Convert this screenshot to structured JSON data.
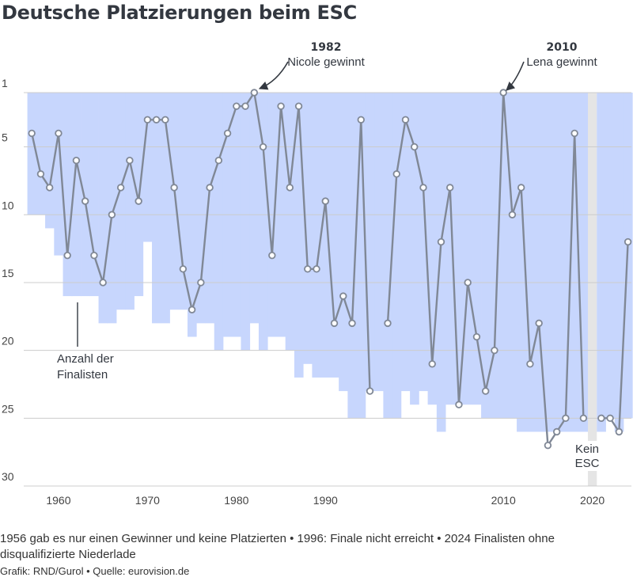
{
  "title": "Deutsche Platzierungen beim ESC",
  "chart_data": {
    "type": "line",
    "title": "Deutsche Platzierungen beim ESC",
    "x_ticks": [
      1960,
      1970,
      1980,
      1990,
      2010,
      2020
    ],
    "y_ticks": [
      1,
      5,
      10,
      15,
      20,
      25,
      30
    ],
    "xlim": [
      1955.6,
      2025
    ],
    "ylim": [
      1,
      30
    ],
    "y_inverted": true,
    "grid": "horizontal",
    "series": [
      {
        "role": "placement",
        "x": [
          1957,
          1958,
          1959,
          1960,
          1961,
          1962,
          1963,
          1964,
          1965,
          1966,
          1967,
          1968,
          1969,
          1970,
          1971,
          1972,
          1973,
          1974,
          1975,
          1976,
          1977,
          1978,
          1979,
          1980,
          1981,
          1982,
          1983,
          1984,
          1985,
          1986,
          1987,
          1988,
          1989,
          1990,
          1991,
          1992,
          1993,
          1994,
          1995,
          1996,
          1997,
          1998,
          1999,
          2000,
          2001,
          2002,
          2003,
          2004,
          2005,
          2006,
          2007,
          2008,
          2009,
          2010,
          2011,
          2012,
          2013,
          2014,
          2015,
          2016,
          2017,
          2018,
          2019,
          2020,
          2021,
          2022,
          2023,
          2024
        ],
        "y": [
          4,
          7,
          8,
          4,
          13,
          6,
          9,
          13,
          15,
          10,
          8,
          6,
          9,
          3,
          3,
          3,
          8,
          14,
          17,
          15,
          8,
          6,
          4,
          2,
          2,
          1,
          5,
          13,
          2,
          8,
          2,
          14,
          14,
          9,
          18,
          16,
          18,
          3,
          23,
          null,
          18,
          7,
          3,
          5,
          8,
          21,
          12,
          8,
          24,
          15,
          19,
          23,
          20,
          1,
          10,
          8,
          21,
          18,
          27,
          26,
          25,
          4,
          25,
          null,
          25,
          25,
          26,
          12
        ]
      },
      {
        "role": "finalists",
        "label": "Anzahl der Finalisten",
        "x": [
          1957,
          1958,
          1959,
          1960,
          1961,
          1962,
          1963,
          1964,
          1965,
          1966,
          1967,
          1968,
          1969,
          1970,
          1971,
          1972,
          1973,
          1974,
          1975,
          1976,
          1977,
          1978,
          1979,
          1980,
          1981,
          1982,
          1983,
          1984,
          1985,
          1986,
          1987,
          1988,
          1989,
          1990,
          1991,
          1992,
          1993,
          1994,
          1995,
          1996,
          1997,
          1998,
          1999,
          2000,
          2001,
          2002,
          2003,
          2004,
          2005,
          2006,
          2007,
          2008,
          2009,
          2010,
          2011,
          2012,
          2013,
          2014,
          2015,
          2016,
          2017,
          2018,
          2019,
          2020,
          2021,
          2022,
          2023,
          2024
        ],
        "y": [
          10,
          10,
          11,
          13,
          16,
          16,
          16,
          16,
          18,
          18,
          17,
          17,
          16,
          12,
          18,
          18,
          17,
          17,
          19,
          18,
          18,
          20,
          19,
          19,
          20,
          18,
          20,
          19,
          19,
          20,
          22,
          21,
          22,
          22,
          22,
          23,
          25,
          25,
          23,
          23,
          25,
          25,
          23,
          24,
          23,
          24,
          26,
          24,
          24,
          24,
          24,
          25,
          25,
          25,
          25,
          26,
          26,
          26,
          26,
          26,
          26,
          26,
          26,
          null,
          26,
          25,
          26,
          25
        ]
      }
    ],
    "annotations": [
      {
        "year": "1982",
        "text": "Nicole gewinnt"
      },
      {
        "year": "2010",
        "text": "Lena gewinnt"
      },
      {
        "text_lines": [
          "Anzahl der",
          "Finalisten"
        ]
      },
      {
        "text_lines": [
          "Kein",
          "ESC"
        ]
      }
    ],
    "colors": {
      "area": "#c7d6fd",
      "line": "#808896",
      "marker_fill": "#ffffff",
      "no_contest": "#e5e5e5",
      "grid": "#cccccc"
    }
  },
  "footnote": "1956 gab es nur einen Gewinner und keine Platzierten • 1996: Finale nicht erreicht • 2024 Finalisten ohne disqualifizierte Niederlade",
  "credit": "Grafik: RND/Gurol • Quelle: eurovision.de"
}
